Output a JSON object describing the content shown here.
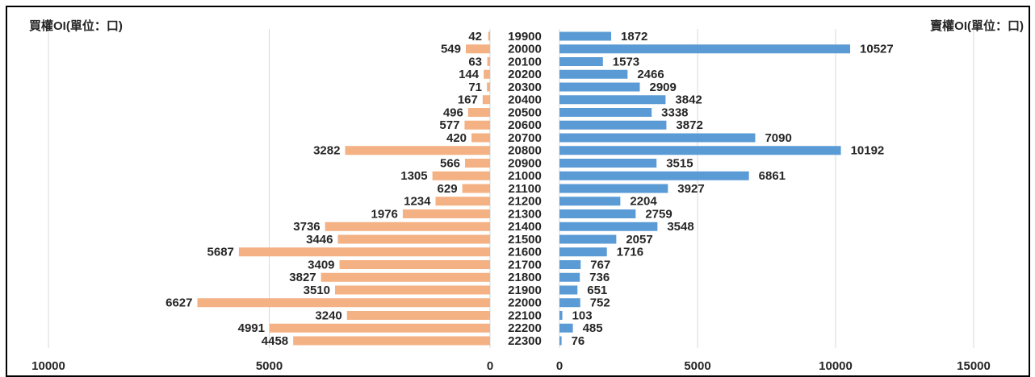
{
  "chart_data": {
    "type": "butterfly",
    "categories": [
      "19900",
      "20000",
      "20100",
      "20200",
      "20300",
      "20400",
      "20500",
      "20600",
      "20700",
      "20800",
      "20900",
      "21000",
      "21100",
      "21200",
      "21300",
      "21400",
      "21500",
      "21600",
      "21700",
      "21800",
      "21900",
      "22000",
      "22100",
      "22200",
      "22300"
    ],
    "series": [
      {
        "name": "買權OI(單位：口)",
        "color": "#f4b183",
        "axis": "x",
        "values": [
          42,
          549,
          63,
          144,
          71,
          167,
          496,
          577,
          420,
          3282,
          566,
          1305,
          629,
          1234,
          1976,
          3736,
          3446,
          5687,
          3409,
          3827,
          3510,
          6627,
          3240,
          4991,
          4458
        ]
      },
      {
        "name": "賣權OI(單位：口)",
        "color": "#5b9bd5",
        "axis": "x2",
        "values": [
          1872,
          10527,
          1573,
          2466,
          2909,
          3842,
          3338,
          3872,
          7090,
          10192,
          3515,
          6861,
          3927,
          2204,
          2759,
          3548,
          2057,
          1716,
          767,
          736,
          651,
          752,
          103,
          485,
          76
        ]
      }
    ],
    "xlim": [
      0,
      10000
    ],
    "xticks": [
      0,
      5000,
      10000
    ],
    "x2lim": [
      0,
      15000
    ],
    "x2ticks": [
      0,
      5000,
      10000,
      15000
    ],
    "grid": true
  }
}
